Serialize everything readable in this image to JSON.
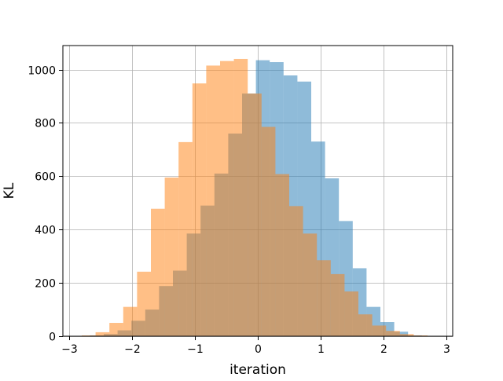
{
  "chart_data": {
    "type": "bar",
    "title": "",
    "xlabel": "iteration",
    "ylabel": "KL",
    "xlim": [
      -3.1,
      3.1
    ],
    "ylim": [
      0,
      1090
    ],
    "xticks": [
      -3,
      -2,
      -1,
      0,
      1,
      2,
      3
    ],
    "yticks": [
      0,
      200,
      400,
      600,
      800,
      1000
    ],
    "xtick_labels": [
      "−3",
      "−2",
      "−1",
      "0",
      "1",
      "2",
      "3"
    ],
    "ytick_labels": [
      "0",
      "200",
      "400",
      "600",
      "800",
      "1000"
    ],
    "grid": true,
    "legend": "none",
    "series": [
      {
        "color": "#1f77b4",
        "alpha": 0.5,
        "bin_edges": [
          -2.67,
          -2.45,
          -2.23,
          -2.01,
          -1.79,
          -1.57,
          -1.35,
          -1.13,
          -0.91,
          -0.69,
          -0.47,
          -0.25,
          -0.03,
          0.19,
          0.41,
          0.63,
          0.85,
          1.07,
          1.29,
          1.51,
          1.73,
          1.95,
          2.17,
          2.39,
          2.61
        ],
        "counts": [
          3,
          8,
          22,
          58,
          100,
          188,
          246,
          385,
          490,
          610,
          760,
          910,
          1035,
          1028,
          978,
          955,
          730,
          592,
          432,
          255,
          110,
          53,
          17,
          3
        ]
      },
      {
        "color": "#ff7f0e",
        "alpha": 0.5,
        "bin_edges": [
          -2.8,
          -2.58,
          -2.36,
          -2.14,
          -1.92,
          -1.7,
          -1.48,
          -1.26,
          -1.04,
          -0.82,
          -0.6,
          -0.38,
          -0.16,
          0.06,
          0.28,
          0.5,
          0.72,
          0.94,
          1.16,
          1.38,
          1.6,
          1.82,
          2.04,
          2.26,
          2.48,
          2.7,
          2.92
        ],
        "counts": [
          3,
          15,
          50,
          110,
          242,
          478,
          595,
          728,
          948,
          1015,
          1032,
          1040,
          910,
          785,
          608,
          488,
          385,
          285,
          233,
          168,
          82,
          40,
          20,
          8,
          3,
          1
        ]
      }
    ]
  }
}
